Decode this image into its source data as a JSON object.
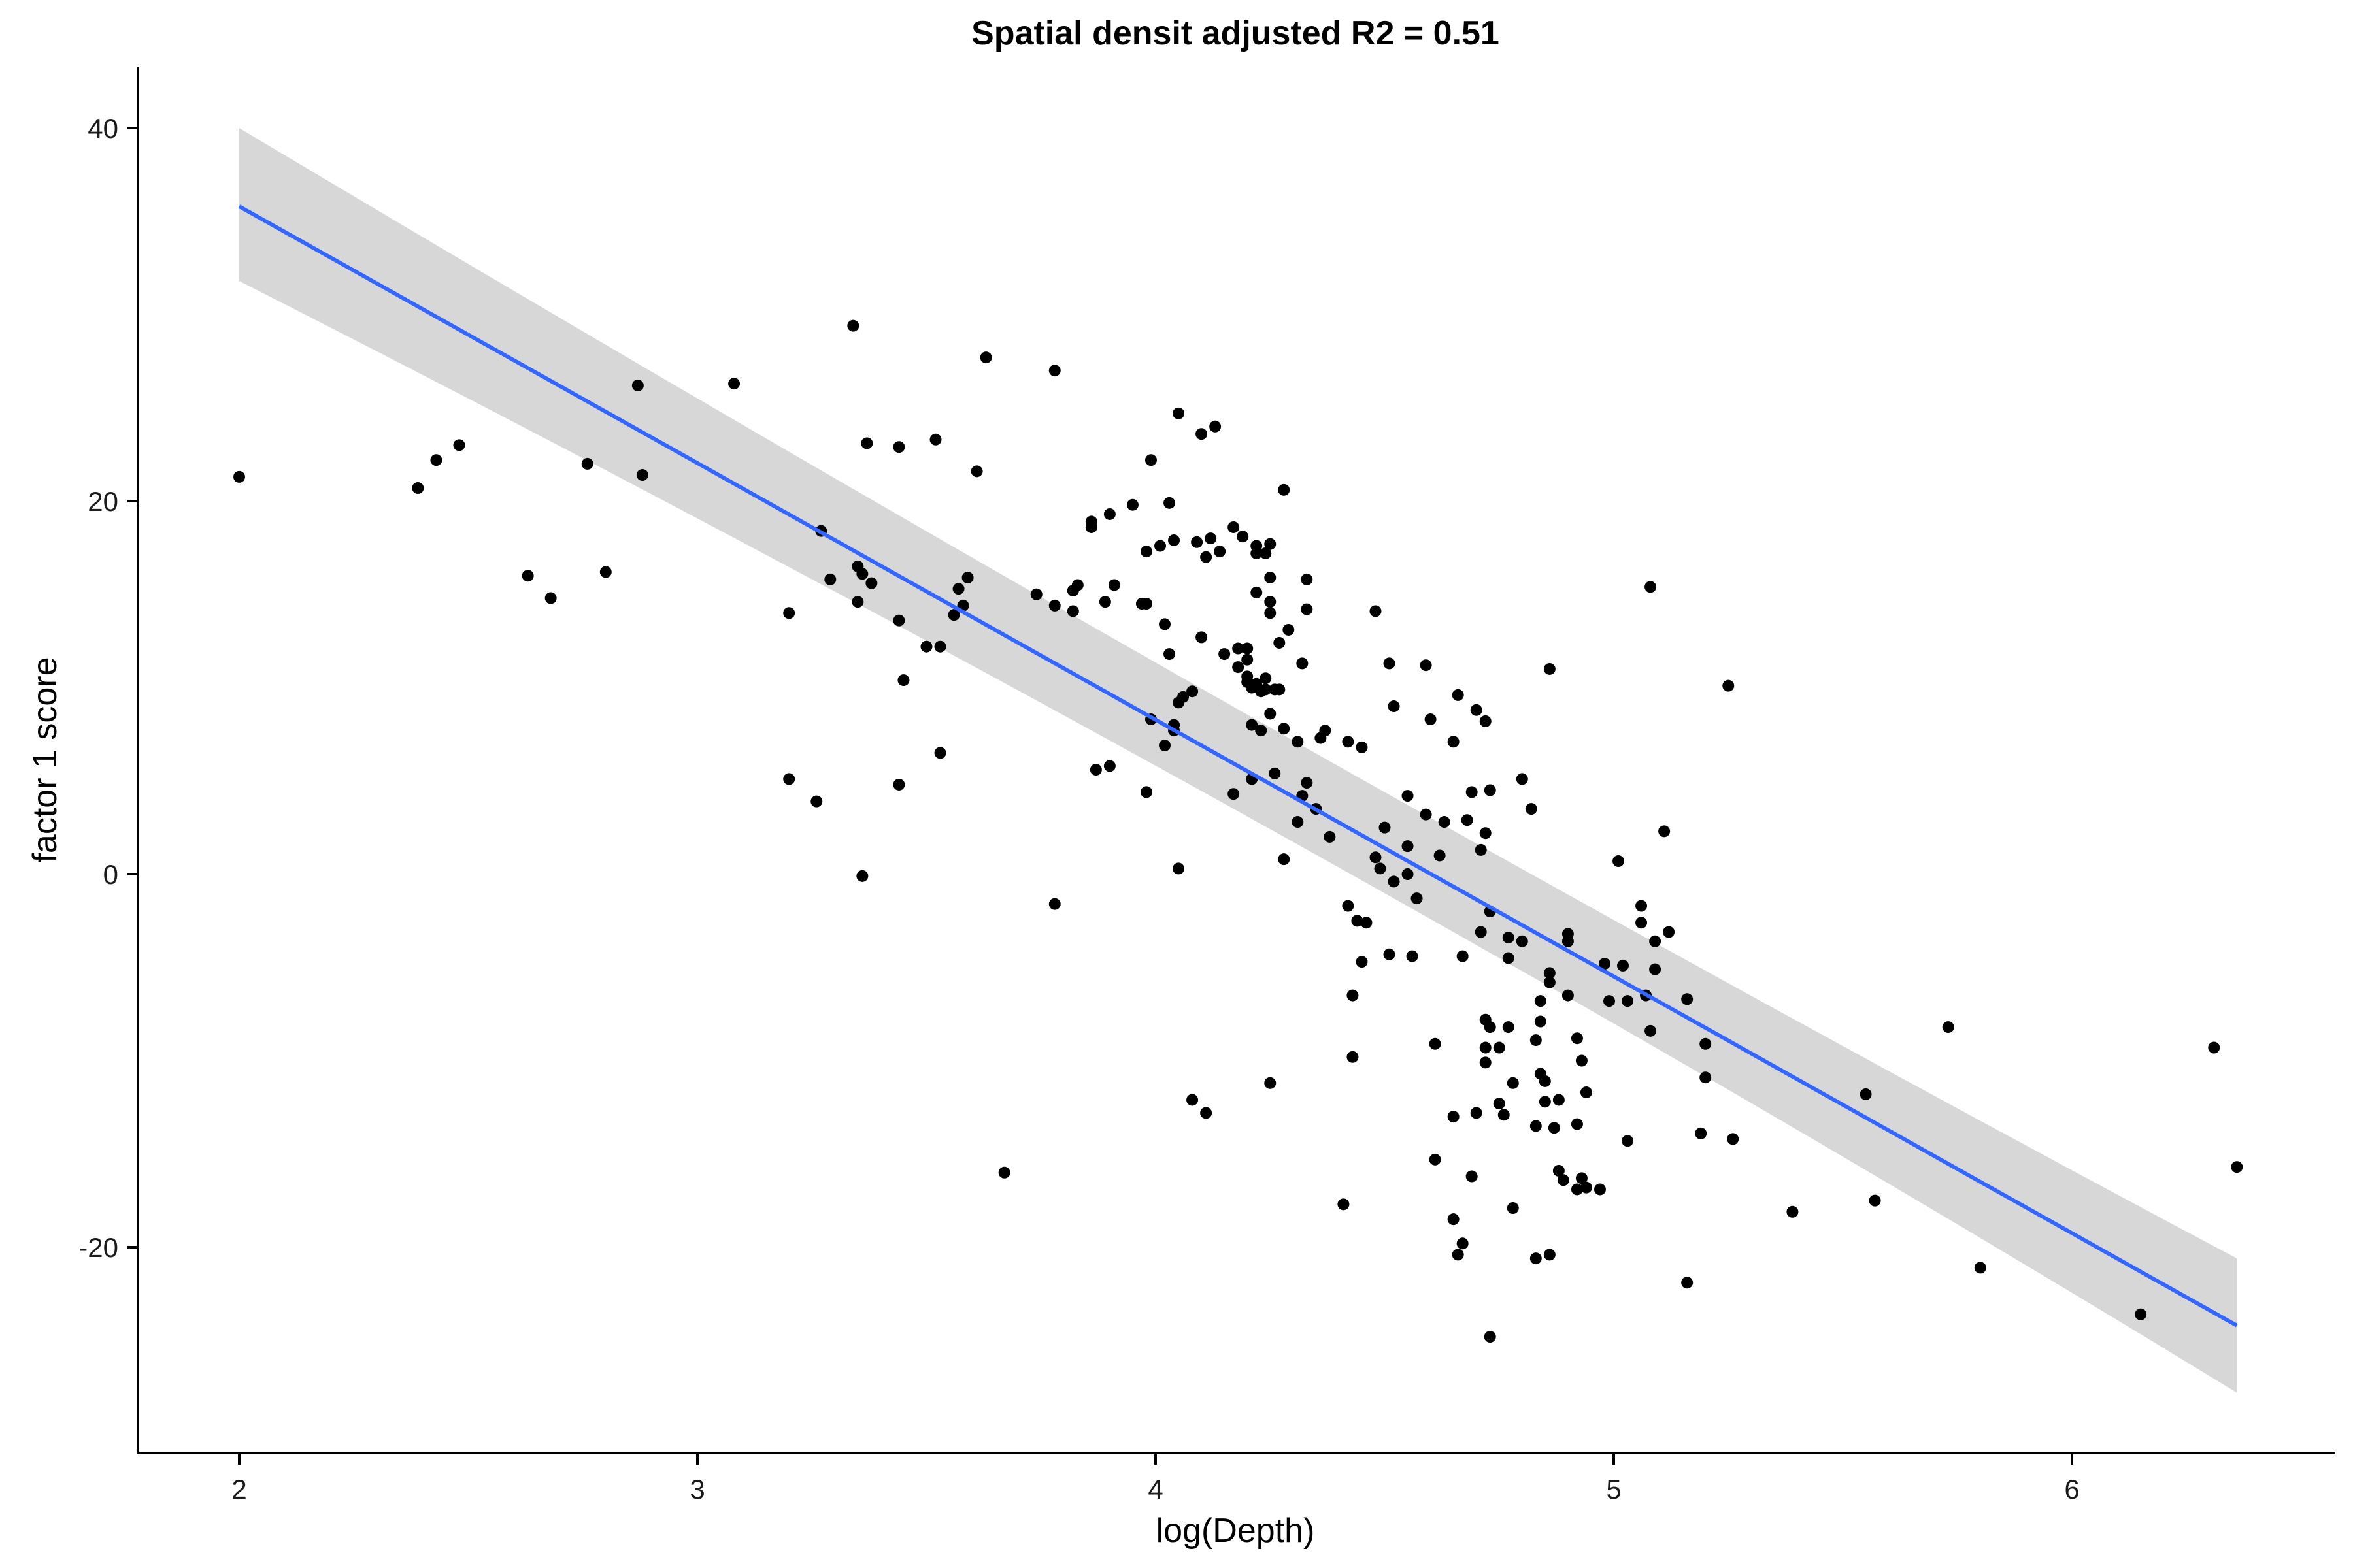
{
  "chart_data": {
    "type": "scatter",
    "title": "Spatial densit adjusted R2 = 0.51",
    "xlabel": "log(Depth)",
    "ylabel": "factor 1 score",
    "xlim": [
      1.8,
      6.6
    ],
    "ylim": [
      -31,
      43
    ],
    "xticks": [
      2,
      3,
      4,
      5,
      6
    ],
    "yticks": [
      -20,
      0,
      20,
      40
    ],
    "xtick_labels": [
      "2",
      "3",
      "4",
      "5",
      "6"
    ],
    "ytick_labels": [
      "-20",
      "0",
      "20",
      "40"
    ],
    "grid": false,
    "legend": "none",
    "points": [
      [
        2.0,
        21.3
      ],
      [
        2.39,
        20.7
      ],
      [
        2.43,
        22.2
      ],
      [
        2.48,
        23.0
      ],
      [
        2.63,
        16.0
      ],
      [
        2.68,
        14.8
      ],
      [
        2.76,
        22.0
      ],
      [
        2.8,
        16.2
      ],
      [
        2.87,
        26.2
      ],
      [
        2.88,
        21.4
      ],
      [
        3.08,
        26.3
      ],
      [
        3.2,
        14.0
      ],
      [
        3.2,
        5.1
      ],
      [
        3.26,
        3.9
      ],
      [
        3.27,
        18.4
      ],
      [
        3.29,
        15.8
      ],
      [
        3.34,
        29.4
      ],
      [
        3.35,
        16.5
      ],
      [
        3.36,
        16.1
      ],
      [
        3.35,
        14.6
      ],
      [
        3.37,
        23.1
      ],
      [
        3.38,
        15.6
      ],
      [
        3.36,
        -0.1
      ],
      [
        3.44,
        22.9
      ],
      [
        3.44,
        13.6
      ],
      [
        3.44,
        4.8
      ],
      [
        3.45,
        10.4
      ],
      [
        3.5,
        12.2
      ],
      [
        3.52,
        23.3
      ],
      [
        3.53,
        12.2
      ],
      [
        3.53,
        6.5
      ],
      [
        3.56,
        13.9
      ],
      [
        3.57,
        15.3
      ],
      [
        3.58,
        14.4
      ],
      [
        3.59,
        15.9
      ],
      [
        3.61,
        21.6
      ],
      [
        3.63,
        27.7
      ],
      [
        3.67,
        -16.0
      ],
      [
        3.74,
        15.0
      ],
      [
        3.78,
        27.0
      ],
      [
        3.78,
        14.4
      ],
      [
        3.78,
        -1.6
      ],
      [
        3.82,
        14.1
      ],
      [
        3.82,
        15.2
      ],
      [
        3.83,
        15.5
      ],
      [
        3.86,
        18.9
      ],
      [
        3.86,
        18.6
      ],
      [
        3.87,
        5.6
      ],
      [
        3.89,
        14.6
      ],
      [
        3.9,
        19.3
      ],
      [
        3.9,
        5.8
      ],
      [
        3.91,
        15.5
      ],
      [
        3.95,
        19.8
      ],
      [
        3.97,
        14.5
      ],
      [
        3.98,
        14.5
      ],
      [
        3.98,
        17.3
      ],
      [
        3.98,
        4.4
      ],
      [
        3.99,
        8.3
      ],
      [
        3.99,
        22.2
      ],
      [
        4.01,
        17.6
      ],
      [
        4.02,
        13.4
      ],
      [
        4.02,
        6.9
      ],
      [
        4.03,
        19.9
      ],
      [
        4.03,
        11.8
      ],
      [
        4.04,
        17.9
      ],
      [
        4.04,
        8.0
      ],
      [
        4.04,
        7.7
      ],
      [
        4.05,
        24.7
      ],
      [
        4.05,
        9.2
      ],
      [
        4.05,
        0.3
      ],
      [
        4.06,
        9.5
      ],
      [
        4.08,
        9.8
      ],
      [
        4.08,
        -12.1
      ],
      [
        4.09,
        17.8
      ],
      [
        4.1,
        12.7
      ],
      [
        4.1,
        23.6
      ],
      [
        4.11,
        17.0
      ],
      [
        4.11,
        -12.8
      ],
      [
        4.12,
        18.0
      ],
      [
        4.13,
        24.0
      ],
      [
        4.14,
        17.3
      ],
      [
        4.15,
        11.8
      ],
      [
        4.17,
        18.6
      ],
      [
        4.17,
        4.3
      ],
      [
        4.18,
        12.1
      ],
      [
        4.18,
        11.1
      ],
      [
        4.19,
        18.1
      ],
      [
        4.2,
        10.6
      ],
      [
        4.2,
        11.5
      ],
      [
        4.2,
        12.1
      ],
      [
        4.2,
        10.3
      ],
      [
        4.21,
        10.0
      ],
      [
        4.21,
        8.0
      ],
      [
        4.21,
        5.1
      ],
      [
        4.22,
        17.6
      ],
      [
        4.22,
        17.2
      ],
      [
        4.22,
        15.1
      ],
      [
        4.22,
        10.2
      ],
      [
        4.23,
        9.8
      ],
      [
        4.23,
        7.7
      ],
      [
        4.24,
        17.2
      ],
      [
        4.24,
        10.5
      ],
      [
        4.24,
        9.9
      ],
      [
        4.25,
        17.7
      ],
      [
        4.25,
        15.9
      ],
      [
        4.25,
        14.6
      ],
      [
        4.25,
        14.0
      ],
      [
        4.25,
        8.6
      ],
      [
        4.25,
        -11.2
      ],
      [
        4.26,
        9.9
      ],
      [
        4.26,
        5.4
      ],
      [
        4.27,
        12.4
      ],
      [
        4.27,
        9.9
      ],
      [
        4.28,
        20.6
      ],
      [
        4.28,
        7.8
      ],
      [
        4.28,
        0.8
      ],
      [
        4.29,
        13.1
      ],
      [
        4.31,
        7.1
      ],
      [
        4.31,
        2.8
      ],
      [
        4.32,
        11.3
      ],
      [
        4.32,
        4.2
      ],
      [
        4.33,
        15.8
      ],
      [
        4.33,
        14.2
      ],
      [
        4.33,
        4.9
      ],
      [
        4.35,
        3.5
      ],
      [
        4.36,
        7.3
      ],
      [
        4.37,
        7.7
      ],
      [
        4.38,
        2.0
      ],
      [
        4.41,
        -17.7
      ],
      [
        4.42,
        7.1
      ],
      [
        4.42,
        -1.7
      ],
      [
        4.43,
        -6.5
      ],
      [
        4.43,
        -9.8
      ],
      [
        4.44,
        -2.5
      ],
      [
        4.45,
        6.8
      ],
      [
        4.45,
        -4.7
      ],
      [
        4.46,
        -2.6
      ],
      [
        4.48,
        14.1
      ],
      [
        4.48,
        0.9
      ],
      [
        4.49,
        0.3
      ],
      [
        4.5,
        2.5
      ],
      [
        4.51,
        11.3
      ],
      [
        4.51,
        -4.3
      ],
      [
        4.52,
        9.0
      ],
      [
        4.52,
        -0.4
      ],
      [
        4.55,
        4.2
      ],
      [
        4.55,
        1.5
      ],
      [
        4.55,
        0.0
      ],
      [
        4.56,
        -4.4
      ],
      [
        4.57,
        -1.3
      ],
      [
        4.59,
        11.2
      ],
      [
        4.59,
        3.2
      ],
      [
        4.6,
        8.3
      ],
      [
        4.61,
        -15.3
      ],
      [
        4.61,
        -9.1
      ],
      [
        4.62,
        1.0
      ],
      [
        4.63,
        2.8
      ],
      [
        4.65,
        -13.0
      ],
      [
        4.65,
        -18.5
      ],
      [
        4.65,
        7.1
      ],
      [
        4.66,
        9.6
      ],
      [
        4.66,
        -20.4
      ],
      [
        4.67,
        -4.4
      ],
      [
        4.67,
        -19.8
      ],
      [
        4.68,
        2.9
      ],
      [
        4.69,
        4.4
      ],
      [
        4.69,
        -16.2
      ],
      [
        4.7,
        8.8
      ],
      [
        4.7,
        -12.8
      ],
      [
        4.71,
        1.3
      ],
      [
        4.71,
        -3.1
      ],
      [
        4.72,
        8.2
      ],
      [
        4.72,
        2.2
      ],
      [
        4.72,
        -7.8
      ],
      [
        4.72,
        -9.3
      ],
      [
        4.72,
        -10.1
      ],
      [
        4.73,
        4.5
      ],
      [
        4.73,
        -2.0
      ],
      [
        4.73,
        -8.2
      ],
      [
        4.73,
        -24.8
      ],
      [
        4.75,
        -12.3
      ],
      [
        4.75,
        -9.3
      ],
      [
        4.76,
        -12.9
      ],
      [
        4.77,
        -3.4
      ],
      [
        4.77,
        -4.5
      ],
      [
        4.77,
        -8.2
      ],
      [
        4.78,
        -11.2
      ],
      [
        4.78,
        -17.9
      ],
      [
        4.8,
        5.1
      ],
      [
        4.8,
        -3.6
      ],
      [
        4.82,
        3.5
      ],
      [
        4.83,
        -20.6
      ],
      [
        4.83,
        -8.9
      ],
      [
        4.83,
        -13.5
      ],
      [
        4.84,
        -6.8
      ],
      [
        4.84,
        -7.9
      ],
      [
        4.84,
        -10.7
      ],
      [
        4.85,
        -11.1
      ],
      [
        4.85,
        -12.2
      ],
      [
        4.86,
        11.0
      ],
      [
        4.86,
        -5.3
      ],
      [
        4.86,
        -5.8
      ],
      [
        4.86,
        -20.4
      ],
      [
        4.87,
        -13.6
      ],
      [
        4.88,
        -15.9
      ],
      [
        4.88,
        -12.1
      ],
      [
        4.89,
        -16.4
      ],
      [
        4.9,
        -3.2
      ],
      [
        4.9,
        -3.6
      ],
      [
        4.9,
        -6.5
      ],
      [
        4.92,
        -8.8
      ],
      [
        4.92,
        -13.4
      ],
      [
        4.92,
        -16.9
      ],
      [
        4.93,
        -10.0
      ],
      [
        4.93,
        -16.3
      ],
      [
        4.94,
        -11.7
      ],
      [
        4.94,
        -16.8
      ],
      [
        4.97,
        -16.9
      ],
      [
        4.98,
        -4.8
      ],
      [
        4.99,
        -6.8
      ],
      [
        5.01,
        0.7
      ],
      [
        5.02,
        -4.9
      ],
      [
        5.03,
        -6.8
      ],
      [
        5.03,
        -14.3
      ],
      [
        5.06,
        -1.7
      ],
      [
        5.06,
        -2.6
      ],
      [
        5.07,
        -6.5
      ],
      [
        5.08,
        15.4
      ],
      [
        5.08,
        -8.4
      ],
      [
        5.09,
        -3.6
      ],
      [
        5.09,
        -5.1
      ],
      [
        5.11,
        2.3
      ],
      [
        5.12,
        -3.1
      ],
      [
        5.16,
        -21.9
      ],
      [
        5.16,
        -6.7
      ],
      [
        5.19,
        -13.9
      ],
      [
        5.2,
        -9.1
      ],
      [
        5.2,
        -10.9
      ],
      [
        5.25,
        10.1
      ],
      [
        5.26,
        -14.2
      ],
      [
        5.39,
        -18.1
      ],
      [
        5.55,
        -11.8
      ],
      [
        5.57,
        -17.5
      ],
      [
        5.73,
        -8.2
      ],
      [
        5.8,
        -21.1
      ],
      [
        6.15,
        -23.6
      ],
      [
        6.31,
        -9.3
      ],
      [
        6.36,
        -15.7
      ]
    ],
    "fit": {
      "x": [
        2.0,
        6.36
      ],
      "y": [
        35.8,
        -24.2
      ],
      "ci_upper": [
        40.0,
        -20.6
      ],
      "ci_lower": [
        31.8,
        -27.8
      ],
      "ci_mid_x": 4.3,
      "ci_mid_upper": 5.7,
      "ci_mid_lower": 3.7
    },
    "colors": {
      "points": "#000000",
      "fit_line": "#3366ff",
      "ci_band": "#d3d3d3",
      "axis": "#000000"
    }
  }
}
